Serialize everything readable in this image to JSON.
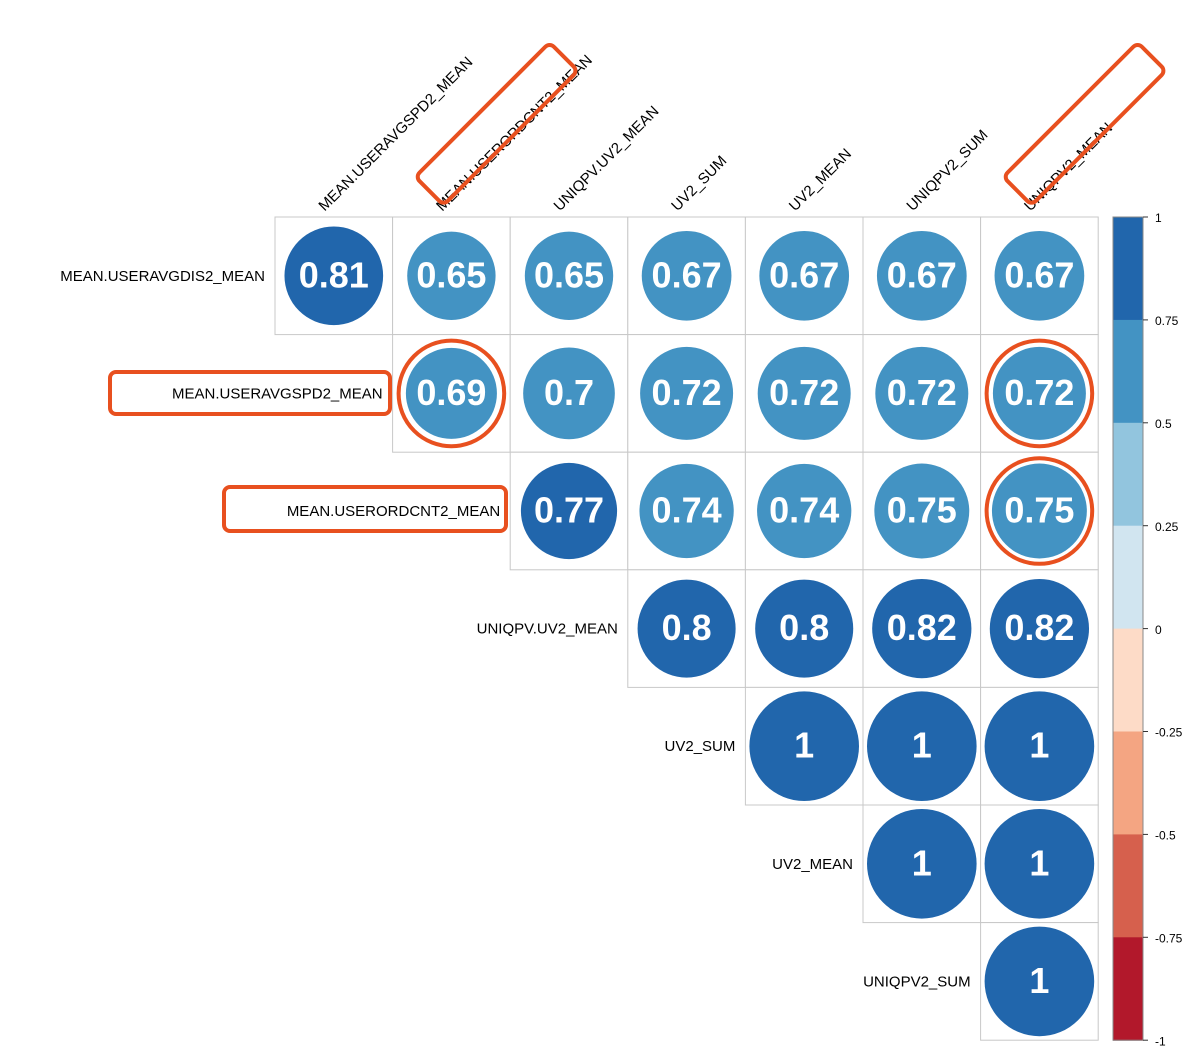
{
  "chart_data": {
    "type": "corrplot",
    "columns": [
      "MEAN.USERAVGSPD2_MEAN",
      "MEAN.USERORDCNT2_MEAN",
      "UNIQPV.UV2_MEAN",
      "UV2_SUM",
      "UV2_MEAN",
      "UNIQPV2_SUM",
      "UNIQPV2_MEAN"
    ],
    "rows": [
      "MEAN.USERAVGDIS2_MEAN",
      "MEAN.USERAVGSPD2_MEAN",
      "MEAN.USERORDCNT2_MEAN",
      "UNIQPV.UV2_MEAN",
      "UV2_SUM",
      "UV2_MEAN",
      "UNIQPV2_SUM"
    ],
    "values": [
      [
        0.81,
        0.65,
        0.65,
        0.67,
        0.67,
        0.67,
        0.67
      ],
      [
        null,
        0.69,
        0.7,
        0.72,
        0.72,
        0.72,
        0.72
      ],
      [
        null,
        null,
        0.77,
        0.74,
        0.74,
        0.75,
        0.75
      ],
      [
        null,
        null,
        null,
        0.8,
        0.8,
        0.82,
        0.82
      ],
      [
        null,
        null,
        null,
        null,
        1,
        1,
        1
      ],
      [
        null,
        null,
        null,
        null,
        null,
        1,
        1
      ],
      [
        null,
        null,
        null,
        null,
        null,
        null,
        1
      ]
    ],
    "colorbar": {
      "lim": [
        -1,
        1
      ],
      "ticks": [
        1,
        0.75,
        0.5,
        0.25,
        0,
        -0.25,
        -0.5,
        -0.75,
        -1
      ],
      "colors": [
        "#2166ac",
        "#4393c3",
        "#92c5de",
        "#d1e5f0",
        "#fddbc7",
        "#f4a582",
        "#d6604d",
        "#b2182b"
      ]
    }
  }
}
